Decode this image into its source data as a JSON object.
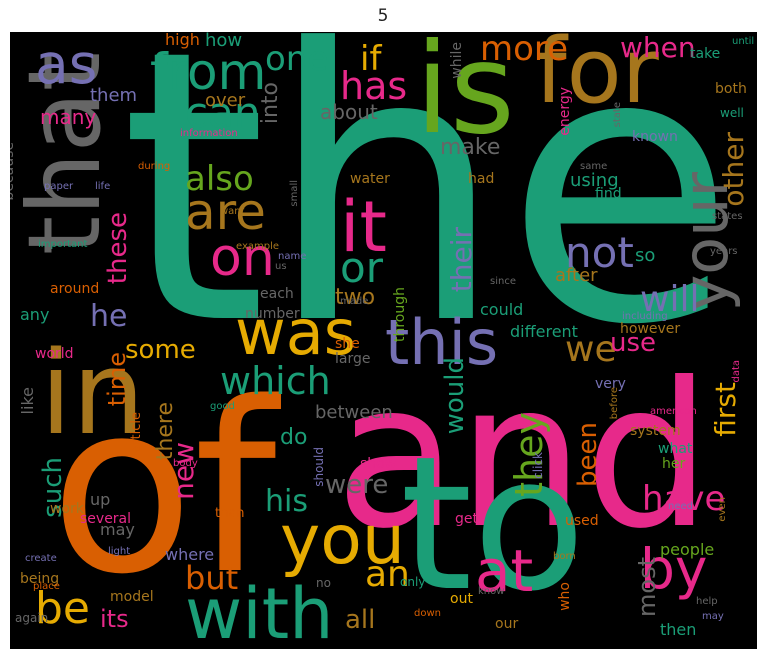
{
  "title": "5",
  "palette": {
    "background": "#000000",
    "teal": "#1b9e77",
    "orange": "#d95f02",
    "purple": "#7570b3",
    "pink": "#e7298a",
    "green": "#66a61e",
    "gold": "#e6ab02",
    "brown": "#a6761d",
    "gray": "#666666"
  },
  "words": [
    {
      "text": "the",
      "color": "#1b9e77"
    },
    {
      "text": "and",
      "color": "#e7298a"
    },
    {
      "text": "of",
      "color": "#d95f02"
    },
    {
      "text": "to",
      "color": "#1b9e77"
    },
    {
      "text": "in",
      "color": "#a6761d"
    },
    {
      "text": "is",
      "color": "#66a61e"
    },
    {
      "text": "for",
      "color": "#a6761d"
    },
    {
      "text": "that",
      "color": "#666666"
    },
    {
      "text": "with",
      "color": "#1b9e77"
    },
    {
      "text": "you",
      "color": "#e6ab02"
    },
    {
      "text": "this",
      "color": "#7570b3"
    },
    {
      "text": "was",
      "color": "#e6ab02"
    },
    {
      "text": "it",
      "color": "#e7298a"
    },
    {
      "text": "your",
      "color": "#666666"
    },
    {
      "text": "on",
      "color": "#e7298a"
    },
    {
      "text": "as",
      "color": "#7570b3"
    },
    {
      "text": "are",
      "color": "#a6761d"
    },
    {
      "text": "by",
      "color": "#e7298a"
    },
    {
      "text": "from",
      "color": "#1b9e77"
    },
    {
      "text": "be",
      "color": "#e6ab02"
    },
    {
      "text": "at",
      "color": "#e7298a"
    },
    {
      "text": "an",
      "color": "#e6ab02"
    },
    {
      "text": "or",
      "color": "#1b9e77"
    },
    {
      "text": "not",
      "color": "#7570b3"
    },
    {
      "text": "have",
      "color": "#e7298a"
    },
    {
      "text": "can",
      "color": "#1b9e77"
    },
    {
      "text": "has",
      "color": "#e7298a"
    },
    {
      "text": "we",
      "color": "#a6761d"
    },
    {
      "text": "they",
      "color": "#66a61e"
    },
    {
      "text": "which",
      "color": "#1b9e77"
    },
    {
      "text": "also",
      "color": "#66a61e"
    },
    {
      "text": "one",
      "color": "#1b9e77"
    },
    {
      "text": "if",
      "color": "#e6ab02"
    },
    {
      "text": "more",
      "color": "#d95f02"
    },
    {
      "text": "when",
      "color": "#e7298a"
    },
    {
      "text": "other",
      "color": "#a6761d"
    },
    {
      "text": "will",
      "color": "#7570b3"
    },
    {
      "text": "first",
      "color": "#e6ab02"
    },
    {
      "text": "would",
      "color": "#1b9e77"
    },
    {
      "text": "been",
      "color": "#d95f02"
    },
    {
      "text": "their",
      "color": "#7570b3"
    },
    {
      "text": "these",
      "color": "#e7298a"
    },
    {
      "text": "he",
      "color": "#7570b3"
    },
    {
      "text": "some",
      "color": "#e6ab02"
    },
    {
      "text": "time",
      "color": "#d95f02"
    },
    {
      "text": "new",
      "color": "#e7298a"
    },
    {
      "text": "such",
      "color": "#1b9e77"
    },
    {
      "text": "his",
      "color": "#1b9e77"
    },
    {
      "text": "were",
      "color": "#666666"
    },
    {
      "text": "but",
      "color": "#d95f02"
    },
    {
      "text": "its",
      "color": "#e7298a"
    },
    {
      "text": "all",
      "color": "#a6761d"
    },
    {
      "text": "most",
      "color": "#666666"
    },
    {
      "text": "use",
      "color": "#e7298a"
    },
    {
      "text": "into",
      "color": "#666666"
    },
    {
      "text": "two",
      "color": "#a6761d"
    },
    {
      "text": "there",
      "color": "#a6761d"
    },
    {
      "text": "about",
      "color": "#666666"
    },
    {
      "text": "many",
      "color": "#e7298a"
    },
    {
      "text": "make",
      "color": "#666666"
    },
    {
      "text": "using",
      "color": "#1b9e77"
    },
    {
      "text": "do",
      "color": "#1b9e77"
    },
    {
      "text": "so",
      "color": "#1b9e77"
    },
    {
      "text": "after",
      "color": "#a6761d"
    },
    {
      "text": "them",
      "color": "#7570b3"
    },
    {
      "text": "over",
      "color": "#a6761d"
    },
    {
      "text": "how",
      "color": "#1b9e77"
    },
    {
      "text": "high",
      "color": "#d95f02"
    },
    {
      "text": "up",
      "color": "#666666"
    },
    {
      "text": "may",
      "color": "#666666"
    },
    {
      "text": "where",
      "color": "#7570b3"
    },
    {
      "text": "between",
      "color": "#666666"
    },
    {
      "text": "like",
      "color": "#666666"
    },
    {
      "text": "work",
      "color": "#a6761d"
    },
    {
      "text": "around",
      "color": "#d95f02"
    },
    {
      "text": "any",
      "color": "#1b9e77"
    },
    {
      "text": "because",
      "color": "#666666"
    },
    {
      "text": "water",
      "color": "#a6761d"
    },
    {
      "text": "each",
      "color": "#666666"
    },
    {
      "text": "number",
      "color": "#666666"
    },
    {
      "text": "could",
      "color": "#1b9e77"
    },
    {
      "text": "different",
      "color": "#1b9e77"
    },
    {
      "text": "however",
      "color": "#a6761d"
    },
    {
      "text": "people",
      "color": "#66a61e"
    },
    {
      "text": "then",
      "color": "#1b9e77"
    },
    {
      "text": "while",
      "color": "#666666"
    },
    {
      "text": "through",
      "color": "#66a61e"
    },
    {
      "text": "had",
      "color": "#a6761d"
    },
    {
      "text": "both",
      "color": "#a6761d"
    },
    {
      "text": "take",
      "color": "#1b9e77"
    },
    {
      "text": "well",
      "color": "#1b9e77"
    },
    {
      "text": "known",
      "color": "#7570b3"
    },
    {
      "text": "energy",
      "color": "#e7298a"
    },
    {
      "text": "world",
      "color": "#e7298a"
    },
    {
      "text": "several",
      "color": "#e7298a"
    },
    {
      "text": "than",
      "color": "#d95f02"
    },
    {
      "text": "article",
      "color": "#d95f02"
    },
    {
      "text": "being",
      "color": "#a6761d"
    },
    {
      "text": "model",
      "color": "#a6761d"
    },
    {
      "text": "she",
      "color": "#d95f02"
    },
    {
      "text": "large",
      "color": "#666666"
    },
    {
      "text": "very",
      "color": "#7570b3"
    },
    {
      "text": "system",
      "color": "#a6761d"
    },
    {
      "text": "what",
      "color": "#1b9e77"
    },
    {
      "text": "her",
      "color": "#66a61e"
    },
    {
      "text": "show",
      "color": "#e7298a"
    },
    {
      "text": "should",
      "color": "#7570b3"
    },
    {
      "text": "get",
      "color": "#e7298a"
    },
    {
      "text": "used",
      "color": "#d95f02"
    },
    {
      "text": "who",
      "color": "#d95f02"
    },
    {
      "text": "out",
      "color": "#e6ab02"
    },
    {
      "text": "our",
      "color": "#a6761d"
    },
    {
      "text": "only",
      "color": "#1b9e77"
    },
    {
      "text": "no",
      "color": "#666666"
    },
    {
      "text": "again",
      "color": "#666666"
    },
    {
      "text": "until",
      "color": "#1b9e77"
    },
    {
      "text": "even",
      "color": "#a6761d"
    },
    {
      "text": "find",
      "color": "#1b9e77"
    },
    {
      "text": "click",
      "color": "#7570b3"
    },
    {
      "text": "information",
      "color": "#e7298a"
    },
    {
      "text": "during",
      "color": "#d95f02"
    },
    {
      "text": "life",
      "color": "#7570b3"
    },
    {
      "text": "paper",
      "color": "#7570b3"
    },
    {
      "text": "small",
      "color": "#666666"
    },
    {
      "text": "important",
      "color": "#1b9e77"
    },
    {
      "text": "want",
      "color": "#a6761d"
    },
    {
      "text": "example",
      "color": "#a6761d"
    },
    {
      "text": "name",
      "color": "#7570b3"
    },
    {
      "text": "us",
      "color": "#666666"
    },
    {
      "text": "made",
      "color": "#666666"
    },
    {
      "text": "since",
      "color": "#666666"
    },
    {
      "text": "same",
      "color": "#666666"
    },
    {
      "text": "state",
      "color": "#666666"
    },
    {
      "text": "states",
      "color": "#666666"
    },
    {
      "text": "years",
      "color": "#666666"
    },
    {
      "text": "including",
      "color": "#7570b3"
    },
    {
      "text": "data",
      "color": "#e7298a"
    },
    {
      "text": "good",
      "color": "#1b9e77"
    },
    {
      "text": "body",
      "color": "#e7298a"
    },
    {
      "text": "before",
      "color": "#a6761d"
    },
    {
      "text": "american",
      "color": "#e7298a"
    },
    {
      "text": "need",
      "color": "#7570b3"
    },
    {
      "text": "create",
      "color": "#7570b3"
    },
    {
      "text": "light",
      "color": "#7570b3"
    },
    {
      "text": "place",
      "color": "#d95f02"
    },
    {
      "text": "born",
      "color": "#a6761d"
    },
    {
      "text": "know",
      "color": "#666666"
    },
    {
      "text": "down",
      "color": "#d95f02"
    },
    {
      "text": "help",
      "color": "#666666"
    },
    {
      "text": "may",
      "color": "#7570b3"
    }
  ]
}
